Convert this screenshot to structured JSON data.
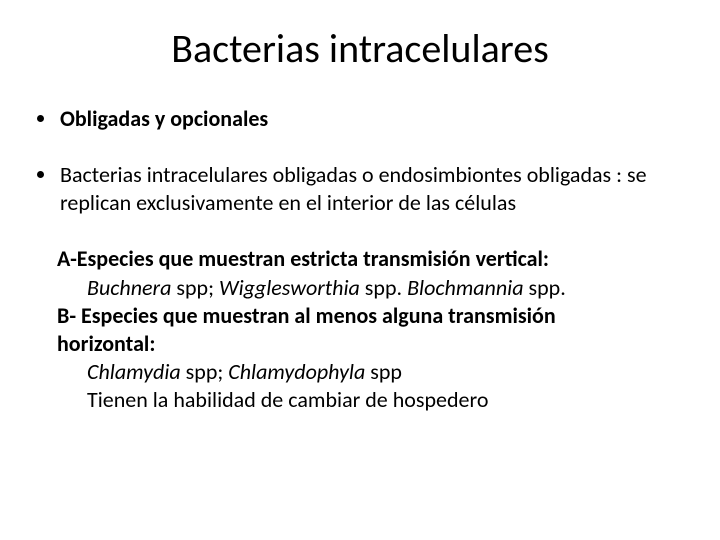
{
  "title": "Bacterias intracelulares",
  "bullet1": "Obligadas y opcionales",
  "bullet2": "Bacterias intracelulares obligadas  o endosimbiontes obligadas : se replican exclusivamente en el interior de las células",
  "sub": {
    "a_head": "A-Especies que muestran estricta transmisión vertical:",
    "a_ex_pre": "Buchnera",
    "a_ex_mid1": " spp;  ",
    "a_ex_i2": "Wigglesworthia",
    "a_ex_mid2": " spp. ",
    "a_ex_i3": "Blochmannia",
    "a_ex_end": " spp.",
    "b_head_1": "B- Especies que muestran al menos alguna transmisión",
    "b_head_2": "horizontal:",
    "b_ex_i1": "Chlamydia",
    "b_ex_mid": " spp; ",
    "b_ex_i2": "Chlamydophyla",
    "b_ex_end": " spp",
    "b_note": "Tienen la habilidad de cambiar de hospedero"
  },
  "colors": {
    "text": "#000000",
    "background": "#ffffff"
  },
  "fontsizes": {
    "title": 40,
    "body": 22
  }
}
